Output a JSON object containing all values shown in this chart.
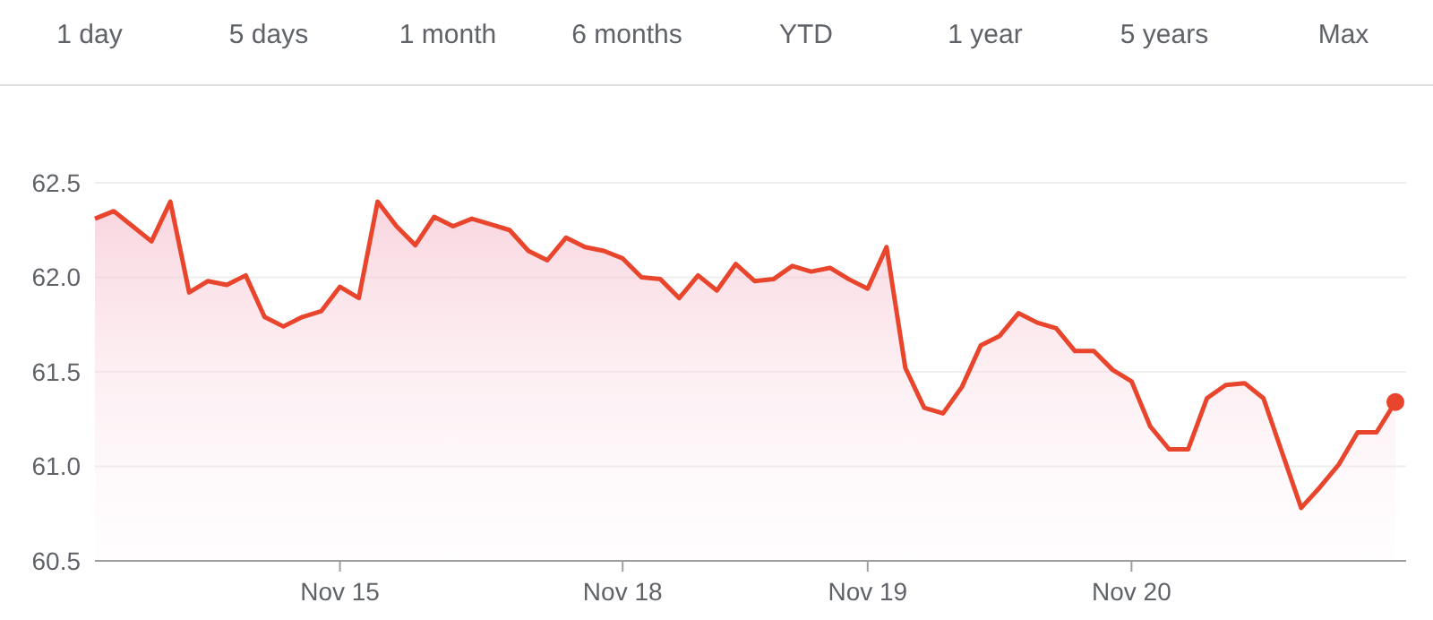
{
  "chart_data": {
    "type": "area",
    "annotations": [
      "1 day",
      "5 days",
      "1 month",
      "6 months",
      "YTD",
      "1 year",
      "5 years",
      "Max"
    ],
    "categories": [
      null,
      null,
      null,
      null,
      null,
      null,
      null,
      null,
      null,
      null,
      null,
      null,
      null,
      "Nov 15",
      null,
      null,
      null,
      null,
      null,
      null,
      null,
      null,
      null,
      null,
      null,
      null,
      null,
      null,
      "Nov 18",
      null,
      null,
      null,
      null,
      null,
      null,
      null,
      null,
      null,
      null,
      null,
      null,
      "Nov 19",
      null,
      null,
      null,
      null,
      null,
      null,
      null,
      null,
      null,
      null,
      null,
      null,
      null,
      "Nov 20",
      null,
      null,
      null,
      null,
      null,
      null,
      null,
      null,
      null,
      null,
      null,
      null,
      null,
      null
    ],
    "series": [
      {
        "color": "#e8452c",
        "values": [
          62.31,
          62.35,
          62.27,
          62.19,
          62.4,
          61.92,
          61.98,
          61.96,
          62.01,
          61.79,
          61.74,
          61.79,
          61.82,
          61.95,
          61.89,
          62.4,
          62.27,
          62.17,
          62.32,
          62.27,
          62.31,
          62.28,
          62.25,
          62.14,
          62.09,
          62.21,
          62.16,
          62.14,
          62.1,
          62.0,
          61.99,
          61.89,
          62.01,
          61.93,
          62.07,
          61.98,
          61.99,
          62.06,
          62.03,
          62.05,
          61.99,
          61.94,
          62.16,
          61.52,
          61.31,
          61.28,
          61.42,
          61.64,
          61.69,
          61.81,
          61.76,
          61.73,
          61.61,
          61.61,
          61.51,
          61.45,
          61.21,
          61.09,
          61.09,
          61.36,
          61.43,
          61.44,
          61.36,
          61.07,
          60.78,
          60.89,
          61.01,
          61.18,
          61.18,
          61.34
        ]
      }
    ],
    "ylim": [
      60.5,
      62.5
    ],
    "yticks": [
      {
        "value": 60.5,
        "label": "60.5"
      },
      {
        "value": 61,
        "label": "61.0"
      },
      {
        "value": 61.5,
        "label": "61.5"
      },
      {
        "value": 62,
        "label": "62.0"
      },
      {
        "value": 62.5,
        "label": "62.5"
      }
    ],
    "grid": "y"
  }
}
